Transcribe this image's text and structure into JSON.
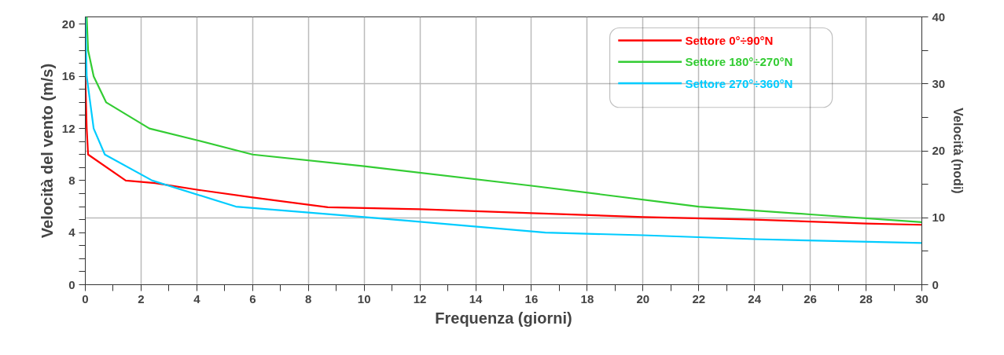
{
  "chart_data": {
    "type": "line",
    "xlabel": "Frequenza (giorni)",
    "ylabel": "Velocità del vento (m/s)",
    "y2label": "Velocità (nodi)",
    "xlim": [
      0,
      30
    ],
    "ylim": [
      0,
      20.57
    ],
    "y2lim": [
      0,
      40
    ],
    "xticks": [
      0,
      {
        "value": 1,
        "label": null
      },
      2,
      {
        "value": 3,
        "label": null
      },
      4,
      {
        "value": 5,
        "label": null
      },
      6,
      {
        "value": 7,
        "label": null
      },
      8,
      {
        "value": 9,
        "label": null
      },
      10,
      {
        "value": 11,
        "label": null
      },
      12,
      {
        "value": 13,
        "label": null
      },
      14,
      {
        "value": 15,
        "label": null
      },
      16,
      {
        "value": 17,
        "label": null
      },
      18,
      {
        "value": 19,
        "label": null
      },
      20,
      {
        "value": 21,
        "label": null
      },
      22,
      {
        "value": 23,
        "label": null
      },
      24,
      {
        "value": 25,
        "label": null
      },
      26,
      {
        "value": 27,
        "label": null
      },
      28,
      {
        "value": 29,
        "label": null
      },
      30
    ],
    "yticks": [
      0,
      {
        "value": 1,
        "label": null
      },
      {
        "value": 2,
        "label": null
      },
      {
        "value": 3,
        "label": null
      },
      4,
      {
        "value": 5,
        "label": null
      },
      {
        "value": 6,
        "label": null
      },
      {
        "value": 7,
        "label": null
      },
      8,
      {
        "value": 9,
        "label": null
      },
      {
        "value": 10,
        "label": null
      },
      {
        "value": 11,
        "label": null
      },
      12,
      {
        "value": 13,
        "label": null
      },
      {
        "value": 14,
        "label": null
      },
      {
        "value": 15,
        "label": null
      },
      16,
      {
        "value": 17,
        "label": null
      },
      {
        "value": 18,
        "label": null
      },
      {
        "value": 19,
        "label": null
      },
      20
    ],
    "y2ticks": [
      0,
      {
        "value": 5,
        "label": null
      },
      10,
      {
        "value": 15,
        "label": null
      },
      20,
      {
        "value": 25,
        "label": null
      },
      30,
      {
        "value": 35,
        "label": null
      },
      40
    ],
    "grid": true,
    "legend": "top right",
    "line_style": "solid",
    "marker": "none",
    "series": [
      {
        "name": "Settore 0°÷90°N",
        "color": "#ff0000",
        "x": [
          0,
          0.05,
          0.1,
          1.45,
          2.5,
          4,
          6,
          8.7,
          12,
          16,
          20,
          24,
          28,
          30
        ],
        "values": [
          16,
          12,
          10,
          8,
          7.8,
          7.3,
          6.7,
          5.95,
          5.8,
          5.5,
          5.2,
          5,
          4.7,
          4.6
        ]
      },
      {
        "name": "Settore 180°÷270°N",
        "color": "#33cc33",
        "x": [
          0.05,
          0.1,
          0.3,
          0.75,
          2.3,
          4,
          6,
          10,
          16,
          22,
          26,
          30
        ],
        "values": [
          20.57,
          18,
          16,
          14,
          12,
          11.1,
          10,
          9.1,
          7.6,
          6,
          5.4,
          4.8
        ]
      },
      {
        "name": "Settore 270°÷360°N",
        "color": "#00ccff",
        "x": [
          0,
          0.05,
          0.3,
          0.7,
          2.4,
          5.4,
          10,
          16.5,
          20,
          24,
          30
        ],
        "values": [
          20.57,
          16,
          12,
          10,
          8,
          6,
          5.2,
          4,
          3.8,
          3.5,
          3.2
        ]
      }
    ]
  }
}
